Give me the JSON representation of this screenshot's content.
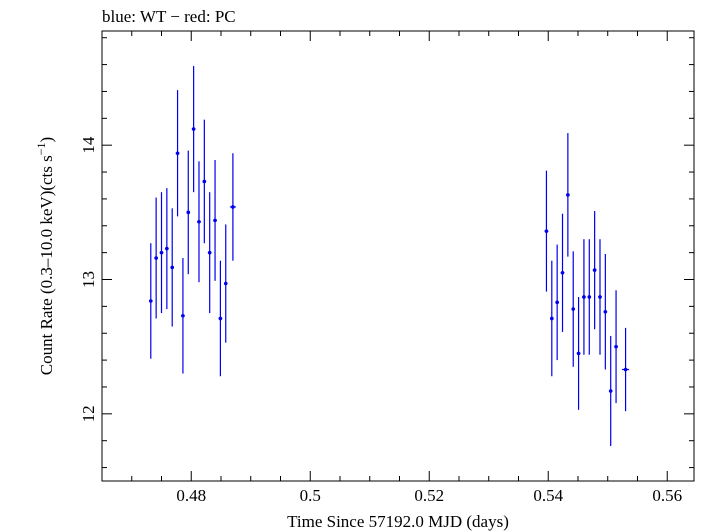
{
  "chart_data": {
    "type": "scatter",
    "title": "blue: WT − red: PC",
    "xlabel": "Time Since 57192.0 MJD (days)",
    "ylabel_main": "Count Rate (0.3–10.0 keV)(cts s",
    "ylabel_sup": "−1",
    "ylabel_end": ")",
    "xlim": [
      0.465,
      0.5645
    ],
    "ylim": [
      11.5,
      14.85
    ],
    "x_ticks": [
      0.48,
      0.5,
      0.52,
      0.54,
      0.56
    ],
    "x_tick_labels": [
      "0.48",
      "0.5",
      "0.52",
      "0.54",
      "0.56"
    ],
    "y_ticks": [
      12,
      13,
      14
    ],
    "y_tick_labels": [
      "12",
      "13",
      "14"
    ],
    "grid": false,
    "series": [
      {
        "color": "#0000ee",
        "points": [
          {
            "x": 0.4732,
            "y": 12.84,
            "yerr": 0.43,
            "xerr": 0.0003
          },
          {
            "x": 0.4741,
            "y": 13.16,
            "yerr": 0.45,
            "xerr": 0.0003
          },
          {
            "x": 0.475,
            "y": 13.2,
            "yerr": 0.45,
            "xerr": 0.0003
          },
          {
            "x": 0.4759,
            "y": 13.23,
            "yerr": 0.45,
            "xerr": 0.0003
          },
          {
            "x": 0.4768,
            "y": 13.09,
            "yerr": 0.44,
            "xerr": 0.0003
          },
          {
            "x": 0.4777,
            "y": 13.94,
            "yerr": 0.47,
            "xerr": 0.0003
          },
          {
            "x": 0.4786,
            "y": 12.73,
            "yerr": 0.43,
            "xerr": 0.0003
          },
          {
            "x": 0.4795,
            "y": 13.5,
            "yerr": 0.46,
            "xerr": 0.0003
          },
          {
            "x": 0.4804,
            "y": 14.12,
            "yerr": 0.47,
            "xerr": 0.0003
          },
          {
            "x": 0.4813,
            "y": 13.43,
            "yerr": 0.45,
            "xerr": 0.0003
          },
          {
            "x": 0.4822,
            "y": 13.73,
            "yerr": 0.46,
            "xerr": 0.0003
          },
          {
            "x": 0.4831,
            "y": 13.2,
            "yerr": 0.45,
            "xerr": 0.0003
          },
          {
            "x": 0.484,
            "y": 13.44,
            "yerr": 0.45,
            "xerr": 0.0003
          },
          {
            "x": 0.4849,
            "y": 12.71,
            "yerr": 0.43,
            "xerr": 0.0003
          },
          {
            "x": 0.4858,
            "y": 12.97,
            "yerr": 0.44,
            "xerr": 0.0003
          },
          {
            "x": 0.487,
            "y": 13.54,
            "yerr": 0.4,
            "xerr": 0.0005
          },
          {
            "x": 0.5397,
            "y": 13.36,
            "yerr": 0.45,
            "xerr": 0.0003
          },
          {
            "x": 0.5406,
            "y": 12.71,
            "yerr": 0.43,
            "xerr": 0.0003
          },
          {
            "x": 0.5415,
            "y": 12.83,
            "yerr": 0.43,
            "xerr": 0.0003
          },
          {
            "x": 0.5424,
            "y": 13.05,
            "yerr": 0.44,
            "xerr": 0.0003
          },
          {
            "x": 0.5433,
            "y": 13.63,
            "yerr": 0.46,
            "xerr": 0.0003
          },
          {
            "x": 0.5442,
            "y": 12.78,
            "yerr": 0.43,
            "xerr": 0.0003
          },
          {
            "x": 0.5451,
            "y": 12.45,
            "yerr": 0.42,
            "xerr": 0.0003
          },
          {
            "x": 0.546,
            "y": 12.87,
            "yerr": 0.43,
            "xerr": 0.0003
          },
          {
            "x": 0.5469,
            "y": 12.87,
            "yerr": 0.43,
            "xerr": 0.0003
          },
          {
            "x": 0.5478,
            "y": 13.07,
            "yerr": 0.44,
            "xerr": 0.0003
          },
          {
            "x": 0.5487,
            "y": 12.87,
            "yerr": 0.43,
            "xerr": 0.0003
          },
          {
            "x": 0.5496,
            "y": 12.76,
            "yerr": 0.43,
            "xerr": 0.0003
          },
          {
            "x": 0.5505,
            "y": 12.17,
            "yerr": 0.41,
            "xerr": 0.0003
          },
          {
            "x": 0.5514,
            "y": 12.5,
            "yerr": 0.42,
            "xerr": 0.0003
          },
          {
            "x": 0.553,
            "y": 12.33,
            "yerr": 0.31,
            "xerr": 0.0006
          }
        ]
      }
    ]
  }
}
